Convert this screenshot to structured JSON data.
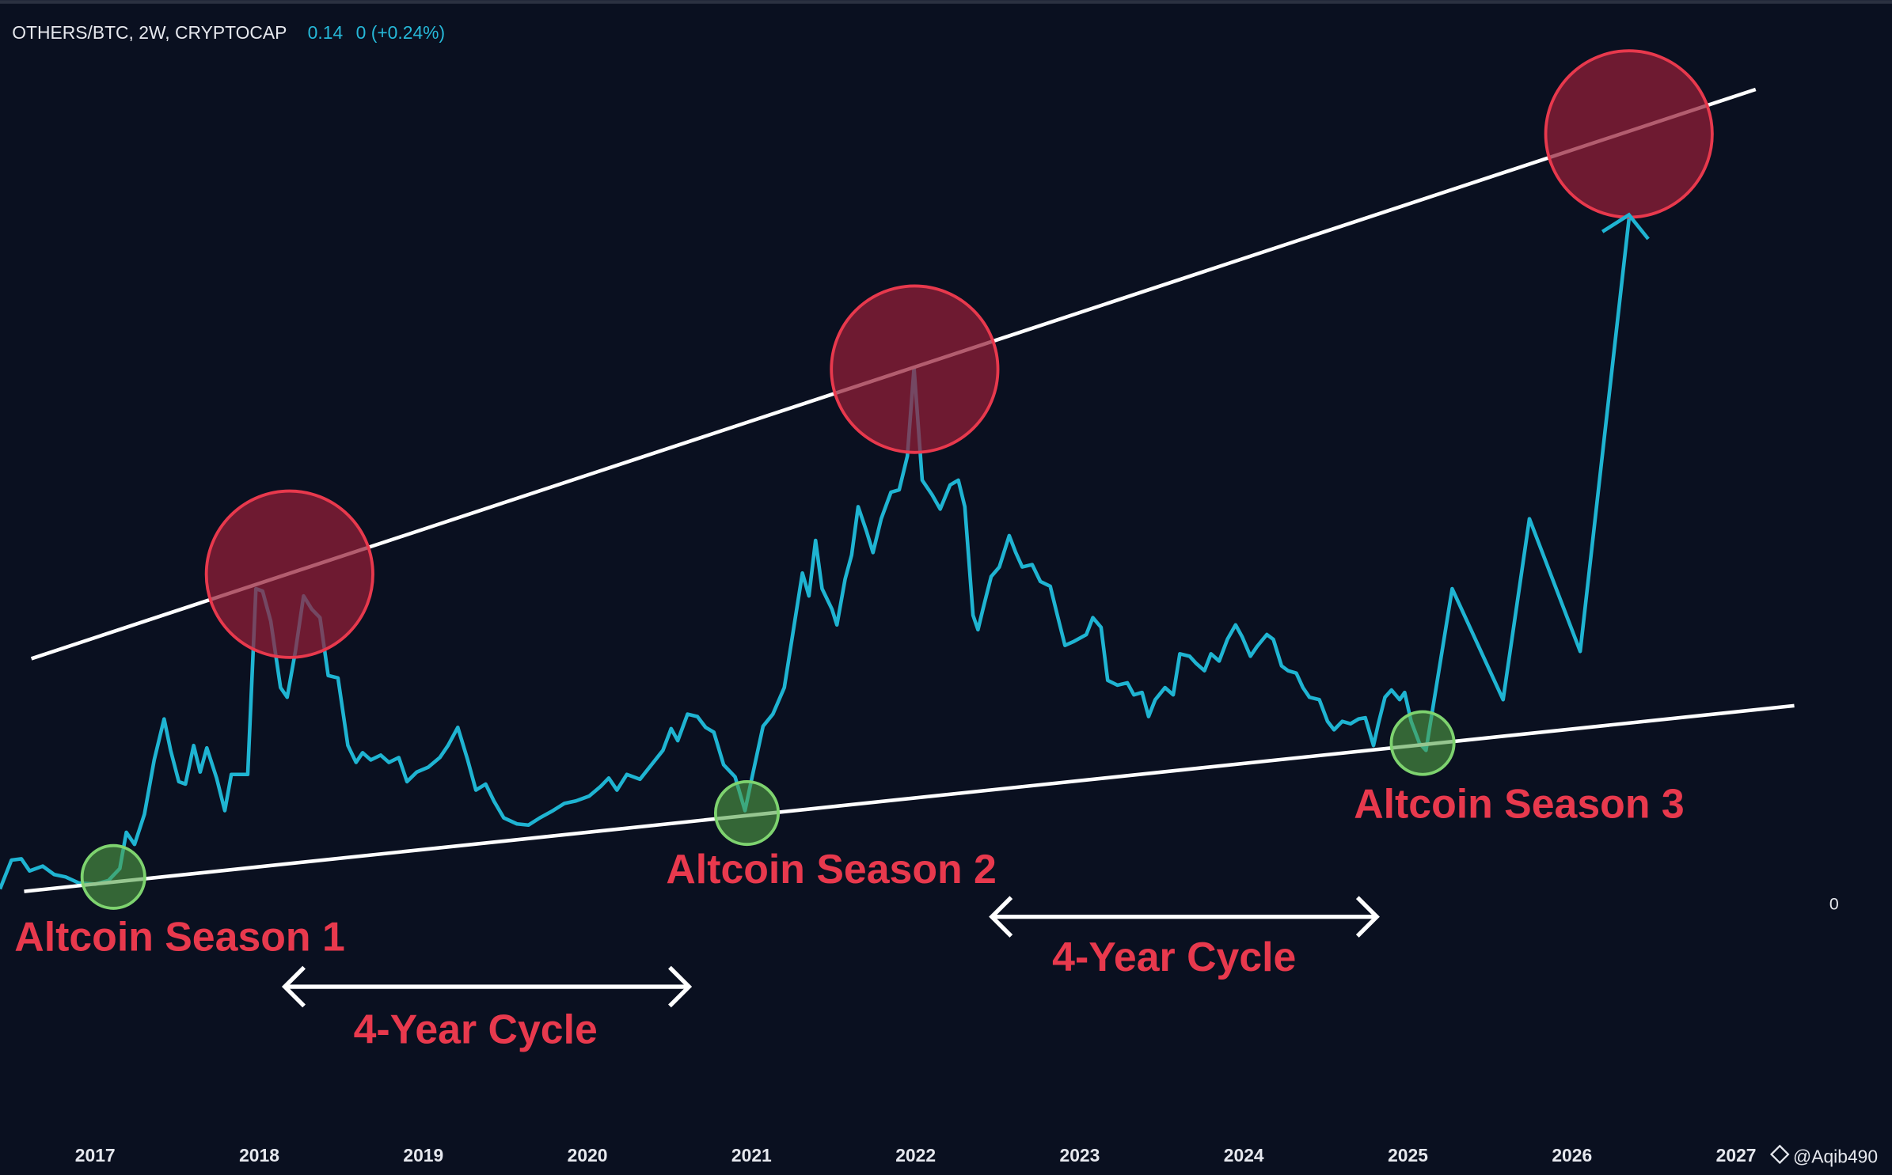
{
  "header": {
    "symbol": "OTHERS/BTC, 2W, CRYPTOCAP",
    "price": "0.14",
    "change": "0 (+0.24%)"
  },
  "watermark": "@Aqib490",
  "chart_data": {
    "type": "line",
    "color": "#1fb4d2",
    "annotations": [
      "Altcoin Season 1",
      "Altcoin Season 2",
      "Altcoin Season 3",
      "4-Year Cycle",
      "4-Year Cycle"
    ],
    "xlim": [
      2016.42,
      2027.45
    ],
    "xticks": [
      2017,
      2018,
      2019,
      2020,
      2021,
      2022,
      2023,
      2024,
      2025,
      2026,
      2027
    ],
    "ylim": [
      -1.91,
      7.49
    ],
    "yticks": [
      0
    ],
    "x": [
      2016.42,
      2016.49,
      2016.55,
      2016.6,
      2016.68,
      2016.75,
      2016.82,
      2016.9,
      2017.0,
      2017.08,
      2017.15,
      2017.19,
      2017.24,
      2017.3,
      2017.36,
      2017.42,
      2017.46,
      2017.51,
      2017.55,
      2017.6,
      2017.64,
      2017.68,
      2017.74,
      2017.79,
      2017.83,
      2017.93,
      2017.98,
      2018.02,
      2018.07,
      2018.13,
      2018.17,
      2018.22,
      2018.27,
      2018.32,
      2018.37,
      2018.42,
      2018.48,
      2018.54,
      2018.59,
      2018.63,
      2018.68,
      2018.74,
      2018.79,
      2018.85,
      2018.9,
      2018.96,
      2019.03,
      2019.1,
      2019.15,
      2019.21,
      2019.27,
      2019.32,
      2019.38,
      2019.43,
      2019.49,
      2019.57,
      2019.64,
      2019.71,
      2019.79,
      2019.86,
      2019.93,
      2020.01,
      2020.08,
      2020.13,
      2020.18,
      2020.24,
      2020.32,
      2020.39,
      2020.46,
      2020.51,
      2020.55,
      2020.61,
      2020.67,
      2020.72,
      2020.77,
      2020.83,
      2020.9,
      2020.96,
      2021.01,
      2021.07,
      2021.13,
      2021.2,
      2021.26,
      2021.31,
      2021.35,
      2021.39,
      2021.43,
      2021.49,
      2021.52,
      2021.57,
      2021.61,
      2021.65,
      2021.7,
      2021.74,
      2021.79,
      2021.85,
      2021.9,
      2021.95,
      2021.99,
      2022.04,
      2022.1,
      2022.15,
      2022.21,
      2022.26,
      2022.3,
      2022.35,
      2022.38,
      2022.41,
      2022.46,
      2022.51,
      2022.57,
      2022.61,
      2022.65,
      2022.71,
      2022.76,
      2022.82,
      2022.86,
      2022.91,
      2022.96,
      2023.04,
      2023.08,
      2023.13,
      2023.17,
      2023.23,
      2023.29,
      2023.33,
      2023.38,
      2023.42,
      2023.46,
      2023.52,
      2023.57,
      2023.61,
      2023.67,
      2023.71,
      2023.76,
      2023.8,
      2023.85,
      2023.9,
      2023.95,
      2023.99,
      2024.04,
      2024.08,
      2024.14,
      2024.18,
      2024.23,
      2024.27,
      2024.32,
      2024.36,
      2024.4,
      2024.46,
      2024.51,
      2024.55,
      2024.6,
      2024.65,
      2024.7,
      2024.74,
      2024.79,
      2024.82,
      2024.86,
      2024.9,
      2024.95,
      2024.98,
      2025.02,
      2025.07,
      2025.11,
      2025.27,
      2025.58,
      2025.74,
      2026.05,
      2026.35
    ],
    "values": [
      0.12,
      0.36,
      0.37,
      0.27,
      0.31,
      0.24,
      0.22,
      0.17,
      0.16,
      0.19,
      0.29,
      0.59,
      0.49,
      0.74,
      1.19,
      1.53,
      1.27,
      1.01,
      0.99,
      1.31,
      1.09,
      1.29,
      1.04,
      0.77,
      1.07,
      1.07,
      2.61,
      2.59,
      2.34,
      1.79,
      1.71,
      2.09,
      2.55,
      2.44,
      2.37,
      1.89,
      1.87,
      1.31,
      1.17,
      1.25,
      1.19,
      1.23,
      1.17,
      1.21,
      1.01,
      1.09,
      1.13,
      1.21,
      1.31,
      1.46,
      1.19,
      0.94,
      0.99,
      0.85,
      0.71,
      0.66,
      0.65,
      0.71,
      0.77,
      0.83,
      0.85,
      0.89,
      0.97,
      1.04,
      0.94,
      1.07,
      1.03,
      1.15,
      1.27,
      1.45,
      1.35,
      1.57,
      1.55,
      1.46,
      1.42,
      1.15,
      1.05,
      0.77,
      1.09,
      1.47,
      1.57,
      1.79,
      2.31,
      2.74,
      2.55,
      3.01,
      2.61,
      2.44,
      2.31,
      2.69,
      2.89,
      3.29,
      3.09,
      2.91,
      3.19,
      3.41,
      3.43,
      3.71,
      4.44,
      3.51,
      3.39,
      3.27,
      3.47,
      3.51,
      3.29,
      2.39,
      2.27,
      2.44,
      2.71,
      2.79,
      3.05,
      2.91,
      2.79,
      2.81,
      2.67,
      2.63,
      2.41,
      2.14,
      2.17,
      2.23,
      2.37,
      2.29,
      1.85,
      1.81,
      1.83,
      1.73,
      1.75,
      1.55,
      1.69,
      1.79,
      1.73,
      2.07,
      2.05,
      1.99,
      1.93,
      2.07,
      2.01,
      2.19,
      2.31,
      2.21,
      2.05,
      2.13,
      2.23,
      2.19,
      1.97,
      1.93,
      1.91,
      1.79,
      1.71,
      1.69,
      1.51,
      1.44,
      1.51,
      1.49,
      1.53,
      1.54,
      1.31,
      1.49,
      1.71,
      1.77,
      1.69,
      1.75,
      1.51,
      1.33,
      1.27,
      2.61,
      1.69,
      3.19,
      2.09,
      5.71
    ]
  }
}
